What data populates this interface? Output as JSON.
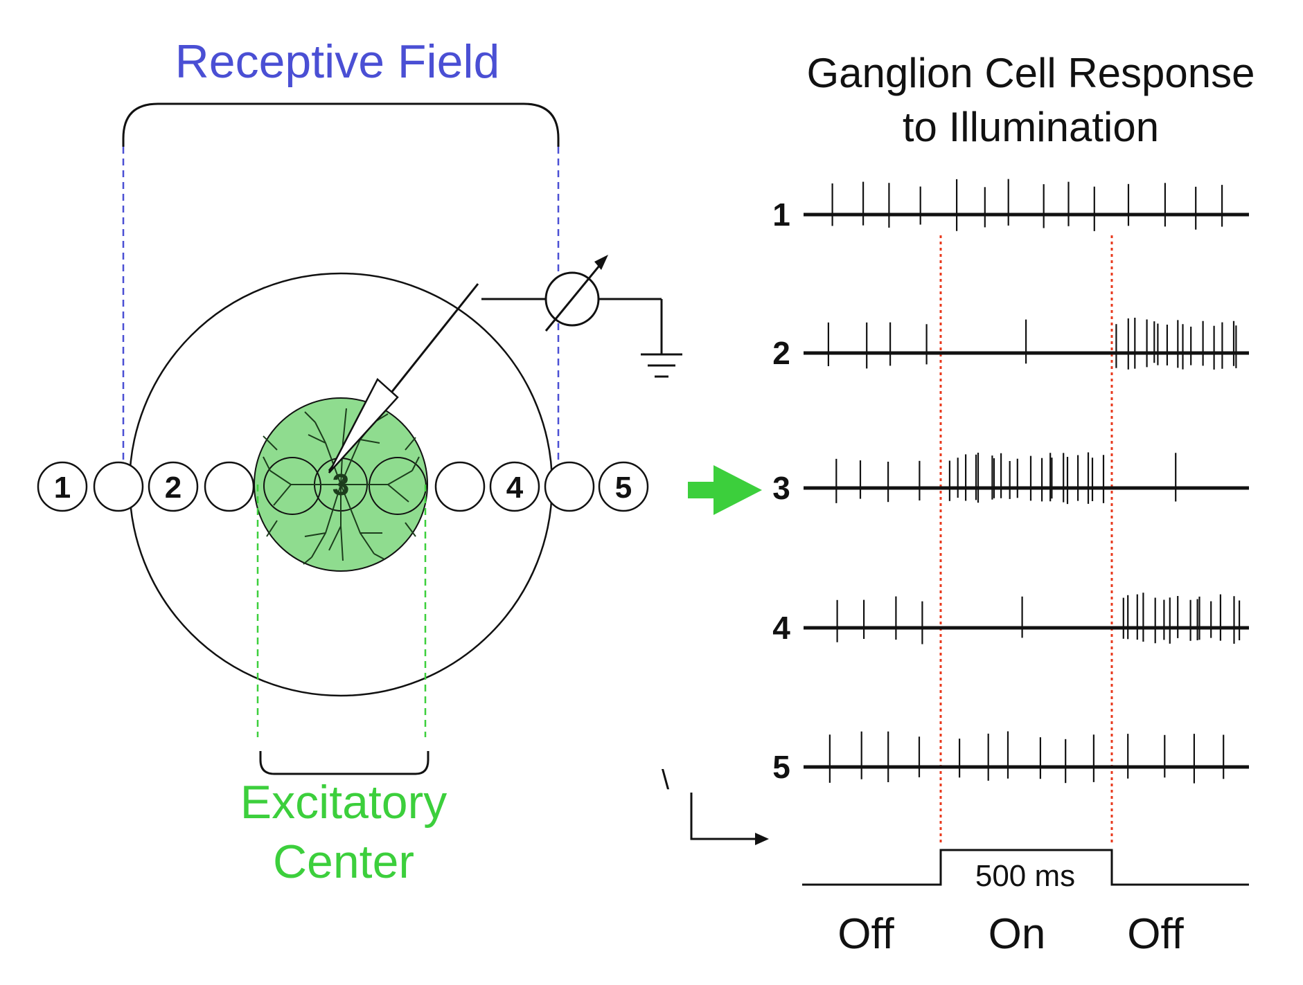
{
  "left": {
    "receptive_field_label": "Receptive Field",
    "excitatory_label_line1": "Excitatory",
    "excitatory_label_line2": "Center",
    "spot_labels": [
      "1",
      "2",
      "3",
      "4",
      "5"
    ]
  },
  "right": {
    "title_line1": "Ganglion Cell Response",
    "title_line2": "to Illumination",
    "trace_labels": [
      "1",
      "2",
      "3",
      "4",
      "5"
    ],
    "duration_label": "500 ms",
    "phase_labels": [
      "Off",
      "On",
      "Off"
    ],
    "scale_mark": "\\"
  },
  "colors": {
    "receptive_field": "#4a4fd4",
    "excitatory": "#3ccf3c",
    "center_fill": "#8fdc8f",
    "stimulus_marker": "#e8381c",
    "arrow": "#3ccf3c",
    "ink": "#111111"
  },
  "spike_trains": {
    "stimulus_window": [
      "on",
      "off"
    ],
    "traces": [
      {
        "id": "1",
        "off_rate": "spontaneous",
        "on_rate": "spontaneous",
        "after_rate": "spontaneous"
      },
      {
        "id": "2",
        "off_rate": "spontaneous",
        "on_rate": "suppressed",
        "after_rate": "burst"
      },
      {
        "id": "3",
        "off_rate": "spontaneous",
        "on_rate": "burst",
        "after_rate": "suppressed"
      },
      {
        "id": "4",
        "off_rate": "spontaneous",
        "on_rate": "suppressed",
        "after_rate": "burst"
      },
      {
        "id": "5",
        "off_rate": "spontaneous",
        "on_rate": "spontaneous",
        "after_rate": "spontaneous"
      }
    ]
  }
}
